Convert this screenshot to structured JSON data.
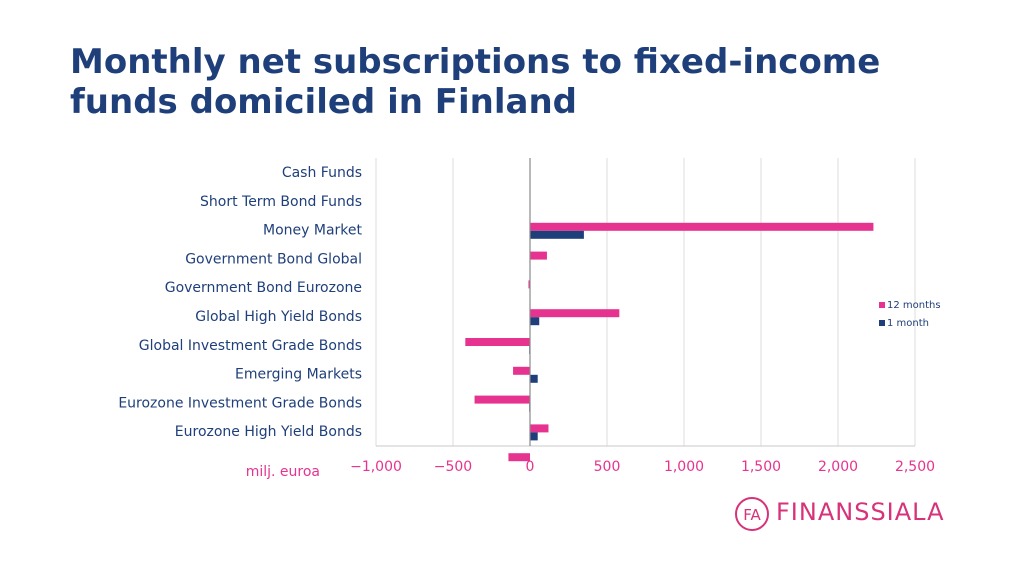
{
  "header": {
    "title_line1": "Monthly net subscriptions to fixed-income",
    "title_line2": "funds domiciled in Finland"
  },
  "colors": {
    "series_12m": "#e6338f",
    "series_1m": "#1f3f7a",
    "title": "#1f3f7a",
    "brand": "#d6337a"
  },
  "brand": {
    "logo_mark": "FA",
    "name": "FINANSSIALA"
  },
  "chart_data": {
    "type": "bar",
    "orientation": "horizontal",
    "categories": [
      "Cash Funds",
      "Short Term Bond Funds",
      "Money Market",
      "Government Bond Global",
      "Government Bond Eurozone",
      "Global High Yield Bonds",
      "Global Investment Grade Bonds",
      "Emerging Markets",
      "Eurozone Investment Grade Bonds",
      "Eurozone High Yield Bonds"
    ],
    "series": [
      {
        "name": "12 months",
        "values": [
          0,
          2230,
          110,
          -10,
          580,
          -420,
          -110,
          -360,
          120,
          -140
        ]
      },
      {
        "name": "1 month",
        "values": [
          0,
          350,
          0,
          0,
          60,
          -5,
          50,
          -5,
          50,
          0
        ]
      }
    ],
    "xlim": [
      -1000,
      2500
    ],
    "xticks": [
      -1000,
      -500,
      0,
      500,
      1000,
      1500,
      2000,
      2500
    ],
    "xtick_labels": [
      "−1,000",
      "−500",
      "0",
      "500",
      "1,000",
      "1,500",
      "2,000",
      "2,500"
    ],
    "unit_label": "milj. euroa",
    "grid": true,
    "legend": "right"
  }
}
